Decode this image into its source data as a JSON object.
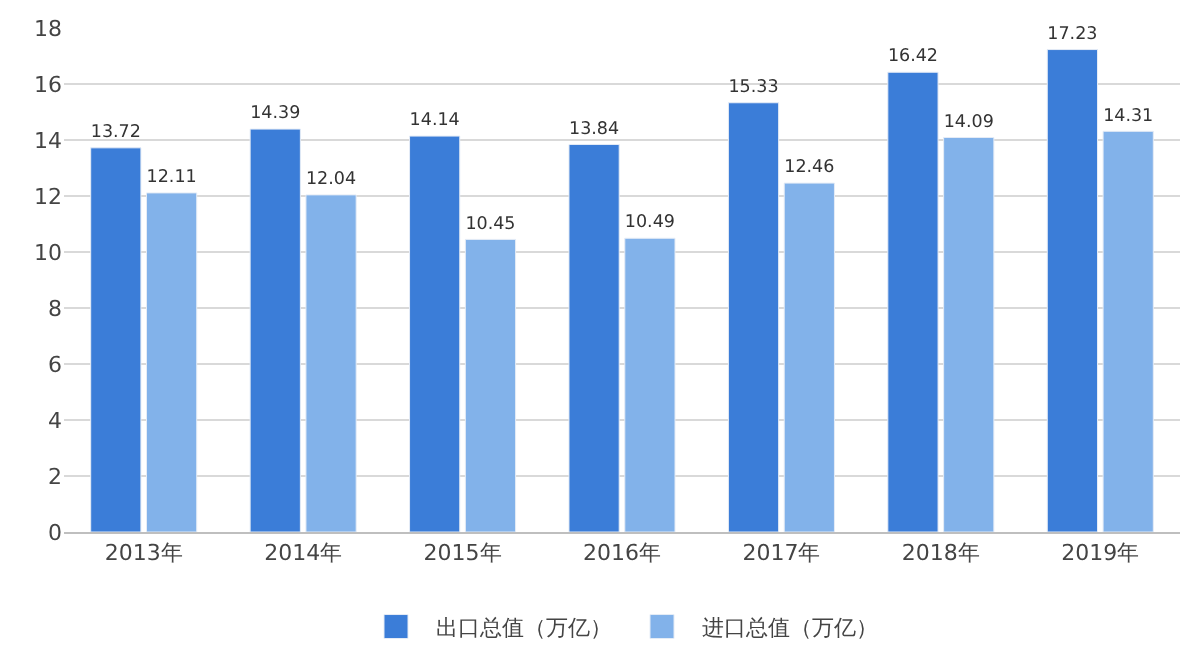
{
  "chart_data": {
    "type": "bar",
    "categories": [
      "2013年",
      "2014年",
      "2015年",
      "2016年",
      "2017年",
      "2018年",
      "2019年"
    ],
    "series": [
      {
        "name": "出口总值（万亿）",
        "color": "#3b7dd8",
        "values": [
          13.72,
          14.39,
          14.14,
          13.84,
          15.33,
          16.42,
          17.23
        ]
      },
      {
        "name": "进口总值（万亿）",
        "color": "#82b2ea",
        "values": [
          12.11,
          12.04,
          10.45,
          10.49,
          12.46,
          14.09,
          14.31
        ]
      }
    ],
    "ylim": [
      0,
      18
    ],
    "yticks": [
      0,
      2,
      4,
      6,
      8,
      10,
      12,
      14,
      16,
      18
    ],
    "grid": "y",
    "legend": "bottom",
    "data_labels": true
  }
}
